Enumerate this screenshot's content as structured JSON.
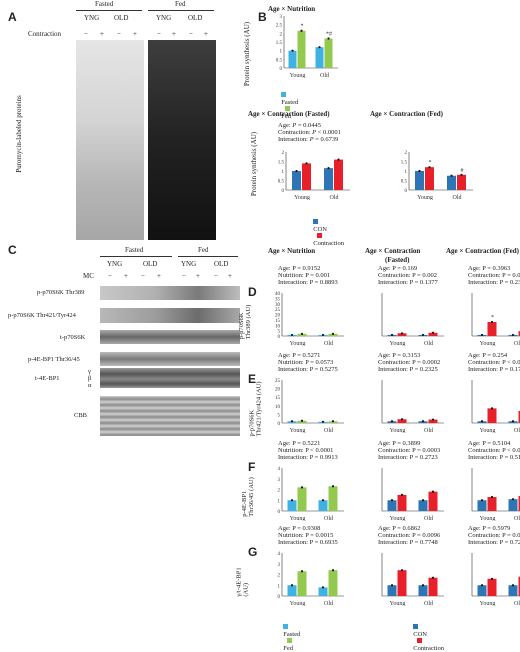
{
  "panels": {
    "A": "A",
    "B": "B",
    "C": "C",
    "D": "D",
    "E": "E",
    "F": "F",
    "G": "G"
  },
  "panelA": {
    "conditions": [
      "Fasted",
      "Fed"
    ],
    "groups": [
      "YNG",
      "OLD",
      "YNG",
      "OLD"
    ],
    "contraction_label": "Contraction",
    "signs": [
      "−",
      "+",
      "−",
      "+",
      "−",
      "+",
      "−",
      "+"
    ],
    "ylabel": "Puromycin-labeled proteins"
  },
  "panelB": {
    "top_title": "Age × Nutrition",
    "top_ylabel": "Protein synthesis (AU)",
    "top_chart": {
      "type": "bar",
      "categories": [
        "Young",
        "Old"
      ],
      "series": [
        {
          "name": "Fasted",
          "values": [
            1.0,
            1.2
          ],
          "color": "#3fb1e3"
        },
        {
          "name": "Fed",
          "values": [
            2.15,
            1.7
          ],
          "color": "#93c94e"
        }
      ],
      "ylim": [
        0,
        3
      ],
      "yticks": [
        "0",
        "0.5",
        "1",
        "1.5",
        "2",
        "2.5",
        "3"
      ],
      "marks": [
        "*",
        "*#"
      ]
    },
    "left_title": "Age × Contraction (Fasted)",
    "stats": {
      "age": "0.0445",
      "contraction": "< 0.0001",
      "interaction": "0.6739"
    },
    "right_title": "Age × Contraction (Fed)",
    "bottom_ylabel": "Protein synthesis (AU)",
    "bottom_left_chart": {
      "type": "bar",
      "categories": [
        "Young",
        "Old"
      ],
      "series": [
        {
          "name": "CON",
          "values": [
            1.0,
            1.15
          ],
          "color": "#2e75b6"
        },
        {
          "name": "Contraction",
          "values": [
            1.4,
            1.6
          ],
          "color": "#e8202a"
        }
      ],
      "ylim": [
        0,
        2
      ],
      "yticks": [
        "0",
        "0.5",
        "1",
        "1.5",
        "2"
      ]
    },
    "bottom_right_chart": {
      "type": "bar",
      "categories": [
        "Young",
        "Old"
      ],
      "series": [
        {
          "name": "CON",
          "values": [
            1.0,
            0.75
          ],
          "color": "#2e75b6"
        },
        {
          "name": "Contraction",
          "values": [
            1.2,
            0.8
          ],
          "color": "#e8202a"
        }
      ],
      "ylim": [
        0,
        2
      ],
      "yticks": [
        "0",
        "0.5",
        "1",
        "1.5",
        "2"
      ],
      "marks": [
        "*",
        "#",
        "#"
      ]
    },
    "legend": [
      "CON",
      "Contraction"
    ]
  },
  "panelC": {
    "conditions": [
      "Fasted",
      "Fed"
    ],
    "groups": [
      "YNG",
      "OLD",
      "YNG",
      "OLD"
    ],
    "mc_label": "MC",
    "signs": [
      "−",
      "+",
      "−",
      "+",
      "−",
      "+",
      "−",
      "+"
    ],
    "rows": [
      "p-p70S6K Thr389",
      "p-p70S6K Thr421/Tyr424",
      "t-p70S6K",
      "p-4E-BP1 Thr36/45",
      "t-4E-BP1",
      "CBB"
    ],
    "greek": [
      "γ",
      "β",
      "α"
    ]
  },
  "columns": {
    "col1": "Age × Nutrition",
    "col2_l1": "Age × Contraction",
    "col2_l2": "(Fasted)",
    "col3": "Age × Contraction (Fed)"
  },
  "stat_rows": [
    {
      "ylabel1": "p-p70S6K",
      "ylabel2": "Thr389 (AU)",
      "yticks": [
        "0",
        "5",
        "10",
        "15",
        "20",
        "25",
        "30",
        "35",
        "40"
      ],
      "ymax": 40,
      "c1": [
        "Age: P = 0.9152",
        "Nutrition: P = 0.001",
        "Interaction: P = 0.8893"
      ],
      "c2": [
        "Age: P = 0.169",
        "Contraction: P = 0.002",
        "Interaction: P = 0.1377"
      ],
      "c3": [
        "Age: P = 0.3963",
        "Contraction: P = 0.0004",
        "Interaction: P = 0.2316"
      ]
    },
    {
      "ylabel1": "p-p70S6K",
      "ylabel2": "Thr421/Tyr424 (AU)",
      "yticks": [
        "0",
        "5",
        "10",
        "15",
        "20",
        "25"
      ],
      "ymax": 25,
      "c1": [
        "Age: P = 0.5271",
        "Nutrition: P = 0.0573",
        "Interaction: P = 0.5275"
      ],
      "c2": [
        "Age: P = 0.3153",
        "Contraction: P = 0.0002",
        "Interaction: P = 0.2325"
      ],
      "c3": [
        "Age: P = 0.254",
        "Contraction: P < 0.0001",
        "Interaction: P = 0.1746"
      ]
    },
    {
      "ylabel1": "p-4E-BP1",
      "ylabel2": "Thr36/45 (AU)",
      "yticks": [
        "0",
        "1",
        "2",
        "3",
        "4"
      ],
      "ymax": 4,
      "c1": [
        "Age: P = 0.5221",
        "Nutrition: P < 0.0001",
        "Interaction: P = 0.9913"
      ],
      "c2": [
        "Age: P = 0.3899",
        "Contraction: P = 0.0003",
        "Interaction: P = 0.2723"
      ],
      "c3": [
        "Age: P = 0.5104",
        "Contraction: P < 0.0001",
        "Interaction: P = 0.5188"
      ]
    },
    {
      "ylabel1": "γ/t-4E-BP1",
      "ylabel2": "(AU)",
      "yticks": [
        "0",
        "1",
        "2",
        "3",
        "4"
      ],
      "ymax": 4,
      "c1": [
        "Age: P = 0.9308",
        "Nutrition: P = 0.0015",
        "Interaction: P = 0.6935"
      ],
      "c2": [
        "Age: P = 0.6862",
        "Contraction: P = 0.0096",
        "Interaction: P = 0.7748"
      ],
      "c3": [
        "Age: P = 0.5979",
        "Contraction: P = 0.0005",
        "Interaction: P = 0.7271"
      ]
    }
  ],
  "chart_data": [
    {
      "type": "bar",
      "panel": "D-nutrition",
      "categories": [
        "Young",
        "Old"
      ],
      "series": [
        {
          "name": "Fasted",
          "values": [
            1,
            1
          ]
        },
        {
          "name": "Fed",
          "values": [
            2,
            2
          ]
        }
      ]
    },
    {
      "type": "bar",
      "panel": "D-fasted",
      "categories": [
        "Young",
        "Old"
      ],
      "series": [
        {
          "name": "CON",
          "values": [
            1,
            1
          ]
        },
        {
          "name": "Contraction",
          "values": [
            2.5,
            3
          ]
        }
      ]
    },
    {
      "type": "bar",
      "panel": "D-fed",
      "categories": [
        "Young",
        "Old"
      ],
      "series": [
        {
          "name": "CON",
          "values": [
            1,
            1
          ]
        },
        {
          "name": "Contraction",
          "values": [
            13,
            4.5
          ]
        }
      ],
      "marks": [
        "*",
        "*#"
      ]
    },
    {
      "type": "bar",
      "panel": "E-nutrition",
      "categories": [
        "Young",
        "Old"
      ],
      "series": [
        {
          "name": "Fasted",
          "values": [
            1,
            0.7
          ]
        },
        {
          "name": "Fed",
          "values": [
            1.3,
            1
          ]
        }
      ]
    },
    {
      "type": "bar",
      "panel": "E-fasted",
      "categories": [
        "Young",
        "Old"
      ],
      "series": [
        {
          "name": "CON",
          "values": [
            1,
            1
          ]
        },
        {
          "name": "Contraction",
          "values": [
            2.2,
            2
          ]
        }
      ]
    },
    {
      "type": "bar",
      "panel": "E-fed",
      "categories": [
        "Young",
        "Old"
      ],
      "series": [
        {
          "name": "CON",
          "values": [
            1,
            1
          ]
        },
        {
          "name": "Contraction",
          "values": [
            8.5,
            7
          ]
        }
      ]
    },
    {
      "type": "bar",
      "panel": "F-nutrition",
      "categories": [
        "Young",
        "Old"
      ],
      "series": [
        {
          "name": "Fasted",
          "values": [
            1,
            1
          ]
        },
        {
          "name": "Fed",
          "values": [
            2.2,
            2.3
          ]
        }
      ]
    },
    {
      "type": "bar",
      "panel": "F-fasted",
      "categories": [
        "Young",
        "Old"
      ],
      "series": [
        {
          "name": "CON",
          "values": [
            1,
            1
          ]
        },
        {
          "name": "Contraction",
          "values": [
            1.5,
            1.8
          ]
        }
      ]
    },
    {
      "type": "bar",
      "panel": "F-fed",
      "categories": [
        "Young",
        "Old"
      ],
      "series": [
        {
          "name": "CON",
          "values": [
            1,
            1.1
          ]
        },
        {
          "name": "Contraction",
          "values": [
            1.3,
            1.4
          ]
        }
      ]
    },
    {
      "type": "bar",
      "panel": "G-nutrition",
      "categories": [
        "Young",
        "Old"
      ],
      "series": [
        {
          "name": "Fasted",
          "values": [
            1,
            0.8
          ]
        },
        {
          "name": "Fed",
          "values": [
            2.3,
            2.4
          ]
        }
      ]
    },
    {
      "type": "bar",
      "panel": "G-fasted",
      "categories": [
        "Young",
        "Old"
      ],
      "series": [
        {
          "name": "CON",
          "values": [
            1,
            1
          ]
        },
        {
          "name": "Contraction",
          "values": [
            2.4,
            1.7
          ]
        }
      ]
    },
    {
      "type": "bar",
      "panel": "G-fed",
      "categories": [
        "Young",
        "Old"
      ],
      "series": [
        {
          "name": "CON",
          "values": [
            1,
            1
          ]
        },
        {
          "name": "Contraction",
          "values": [
            1.6,
            1.8
          ]
        }
      ]
    }
  ],
  "legend_bottom": {
    "nutrition": [
      "Fasted",
      "Fed"
    ],
    "contraction": [
      "CON",
      "Contraction"
    ]
  },
  "colors": {
    "fasted": "#3fb1e3",
    "fed": "#93c94e",
    "con": "#2e75b6",
    "contraction": "#e8202a"
  }
}
